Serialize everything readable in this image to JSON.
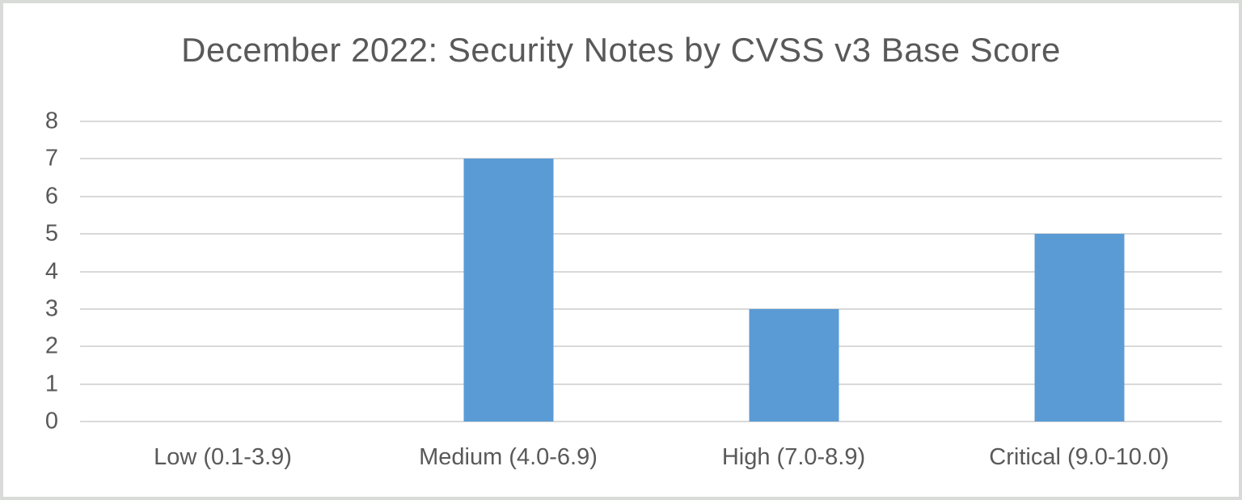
{
  "chart_data": {
    "type": "bar",
    "title": "December 2022: Security Notes by CVSS v3 Base Score",
    "categories": [
      "Low (0.1-3.9)",
      "Medium (4.0-6.9)",
      "High (7.0-8.9)",
      "Critical (9.0-10.0)"
    ],
    "values": [
      0,
      7,
      3,
      5
    ],
    "xlabel": "",
    "ylabel": "",
    "ylim": [
      0,
      8
    ],
    "yticks": [
      0,
      1,
      2,
      3,
      4,
      5,
      6,
      7,
      8
    ],
    "grid": true,
    "legend": false,
    "bar_color": "#5B9BD5",
    "gridline_color": "#D9D9D9",
    "text_color": "#595959",
    "frame_border_color": "#D9DBD9",
    "background_color": "#FFFFFF"
  }
}
